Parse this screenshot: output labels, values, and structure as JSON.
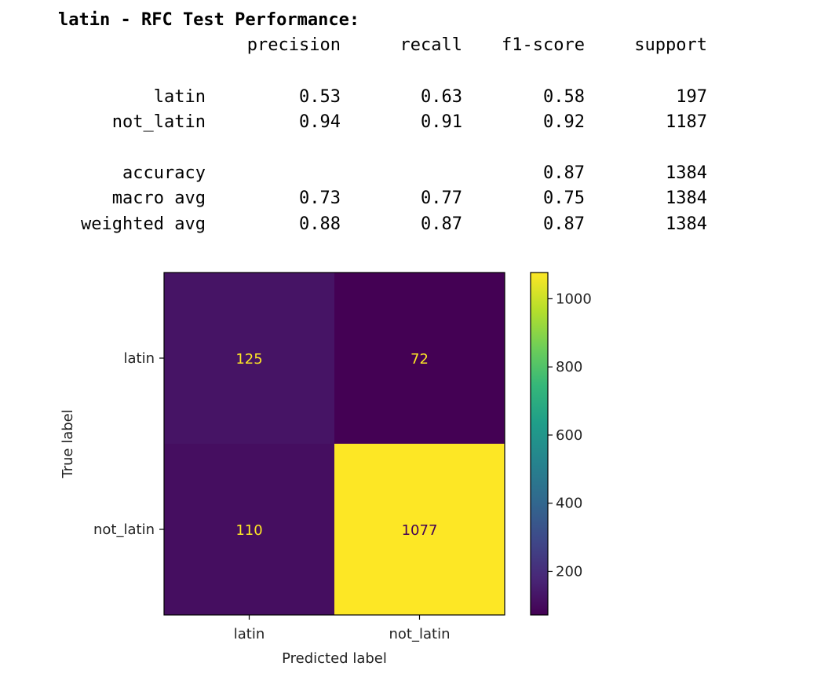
{
  "report": {
    "title": "latin - RFC Test Performance:",
    "columns": [
      "precision",
      "recall",
      "f1-score",
      "support"
    ],
    "rows": [
      {
        "label": "latin",
        "values": [
          "0.53",
          "0.63",
          "0.58",
          "197"
        ]
      },
      {
        "label": "not_latin",
        "values": [
          "0.94",
          "0.91",
          "0.92",
          "1187"
        ]
      },
      {
        "label": "accuracy",
        "values": [
          "",
          "",
          "0.87",
          "1384"
        ]
      },
      {
        "label": "macro avg",
        "values": [
          "0.73",
          "0.77",
          "0.75",
          "1384"
        ]
      },
      {
        "label": "weighted avg",
        "values": [
          "0.88",
          "0.87",
          "0.87",
          "1384"
        ]
      }
    ]
  },
  "chart_data": {
    "type": "heatmap",
    "title": "",
    "xlabel": "Predicted label",
    "ylabel": "True label",
    "x_categories": [
      "latin",
      "not_latin"
    ],
    "y_categories": [
      "latin",
      "not_latin"
    ],
    "values": [
      [
        125,
        72
      ],
      [
        110,
        1077
      ]
    ],
    "colormap": "viridis",
    "colorbar": {
      "ticks": [
        200,
        400,
        600,
        800,
        1000
      ],
      "range": [
        72,
        1077
      ]
    },
    "colors": {
      "low": "#440154",
      "high": "#fde725",
      "text_on_dark": "#fde725",
      "text_on_light": "#440154"
    }
  }
}
